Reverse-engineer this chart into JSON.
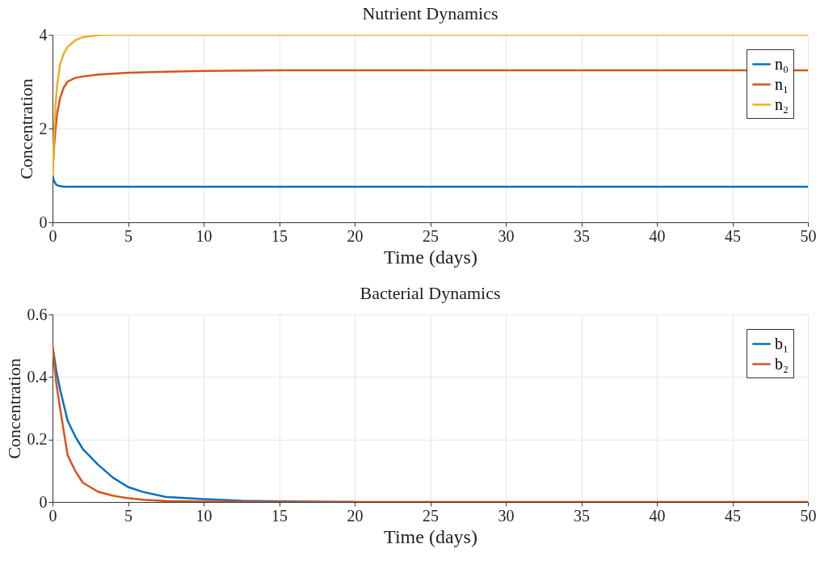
{
  "chart_data": [
    {
      "type": "line",
      "title": "Nutrient Dynamics",
      "xlabel": "Time (days)",
      "ylabel": "Concentration",
      "xlim": [
        0,
        50
      ],
      "xticks": [
        0,
        5,
        10,
        15,
        20,
        25,
        30,
        35,
        40,
        45,
        50
      ],
      "ylim": [
        0,
        4
      ],
      "yticks": [
        0,
        2,
        4
      ],
      "grid": true,
      "legend": "top right",
      "series": [
        {
          "name": "n₀",
          "color": "#0072bd",
          "x": [
            0,
            0.1,
            0.2,
            0.3,
            0.5,
            0.8,
            1,
            2,
            5,
            10,
            20,
            30,
            40,
            50
          ],
          "values": [
            1.0,
            0.88,
            0.82,
            0.79,
            0.77,
            0.76,
            0.76,
            0.76,
            0.76,
            0.76,
            0.76,
            0.76,
            0.76,
            0.76
          ]
        },
        {
          "name": "n₁",
          "color": "#d95319",
          "x": [
            0,
            0.1,
            0.2,
            0.3,
            0.5,
            0.75,
            1,
            1.5,
            2,
            3,
            5,
            7.5,
            10,
            15,
            20,
            30,
            40,
            50
          ],
          "values": [
            1.0,
            1.6,
            2.0,
            2.3,
            2.65,
            2.88,
            3.0,
            3.08,
            3.11,
            3.15,
            3.19,
            3.21,
            3.23,
            3.24,
            3.24,
            3.24,
            3.24,
            3.24
          ]
        },
        {
          "name": "n₂",
          "color": "#edb120",
          "x": [
            0,
            0.1,
            0.2,
            0.3,
            0.5,
            0.75,
            1,
            1.5,
            2,
            3,
            4,
            5,
            10,
            20,
            30,
            40,
            50
          ],
          "values": [
            1.0,
            1.9,
            2.5,
            2.9,
            3.37,
            3.6,
            3.74,
            3.88,
            3.95,
            3.99,
            4.0,
            4.0,
            4.0,
            4.0,
            4.0,
            4.0,
            4.0
          ]
        }
      ]
    },
    {
      "type": "line",
      "title": "Bacterial Dynamics",
      "xlabel": "Time (days)",
      "ylabel": "Concentration",
      "xlim": [
        0,
        50
      ],
      "xticks": [
        0,
        5,
        10,
        15,
        20,
        25,
        30,
        35,
        40,
        45,
        50
      ],
      "ylim": [
        0,
        0.6
      ],
      "yticks": [
        0,
        0.2,
        0.4,
        0.6
      ],
      "grid": true,
      "legend": "top right",
      "series": [
        {
          "name": "b₁",
          "color": "#0072bd",
          "x": [
            0,
            0.25,
            0.5,
            1,
            1.5,
            2,
            3,
            4,
            5,
            6,
            7.5,
            10,
            12.5,
            15,
            20
          ],
          "values": [
            0.5,
            0.42,
            0.36,
            0.26,
            0.21,
            0.17,
            0.12,
            0.078,
            0.048,
            0.032,
            0.016,
            0.009,
            0.004,
            0.002,
            0.0
          ]
        },
        {
          "name": "b₂",
          "color": "#d95319",
          "x": [
            0,
            0.25,
            0.5,
            1,
            1.5,
            2,
            3,
            4,
            5,
            6,
            7.5,
            10,
            15,
            20,
            30,
            40,
            50
          ],
          "values": [
            0.5,
            0.38,
            0.3,
            0.15,
            0.1,
            0.062,
            0.033,
            0.02,
            0.012,
            0.007,
            0.003,
            0.001,
            0.0,
            0.0,
            0.0,
            0.0,
            0.0
          ]
        }
      ]
    }
  ]
}
